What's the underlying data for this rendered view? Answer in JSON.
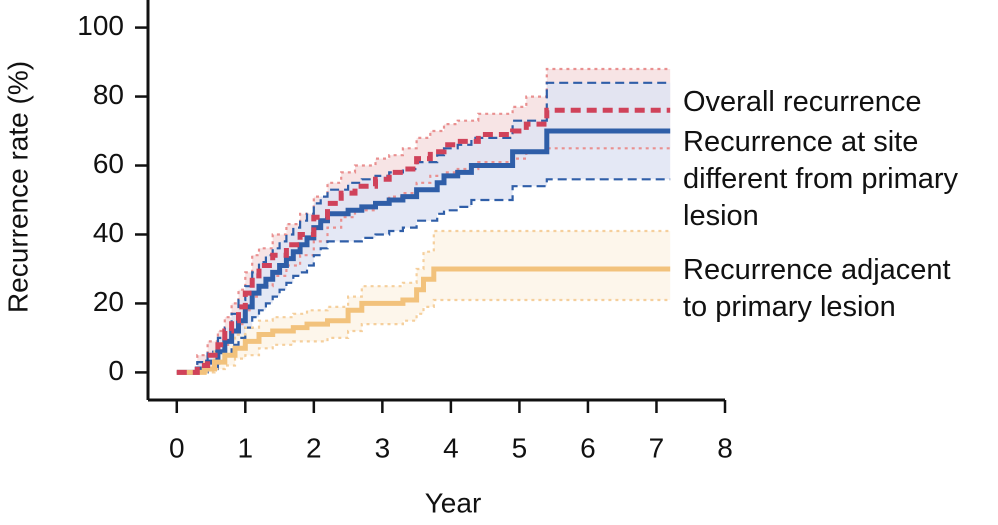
{
  "chart_data": {
    "type": "step",
    "x_label": "Year",
    "y_label": "Recurrence rate (%)",
    "xlim": [
      -0.42,
      8
    ],
    "ylim": [
      -8,
      108
    ],
    "xticks": [
      0,
      1,
      2,
      3,
      4,
      5,
      6,
      7,
      8
    ],
    "yticks": [
      0,
      20,
      40,
      60,
      80,
      100
    ],
    "series": [
      {
        "name": "Overall recurrence",
        "color": "#d0425a",
        "band_color": "#f6dfe0",
        "ci_color": "#e99090",
        "line_style": "dashed",
        "ci_style": "dotted",
        "x": [
          0,
          0.3,
          0.45,
          0.6,
          0.7,
          0.8,
          0.9,
          1.0,
          1.1,
          1.2,
          1.4,
          1.6,
          1.8,
          2.0,
          2.2,
          2.4,
          2.6,
          2.9,
          3.1,
          3.3,
          3.5,
          3.7,
          3.9,
          4.1,
          4.4,
          4.9,
          5.1,
          5.4,
          7.2
        ],
        "values": [
          0,
          2,
          5,
          8,
          12,
          15,
          19,
          23,
          28,
          31,
          34,
          37,
          40,
          45,
          49,
          52,
          54,
          56,
          58,
          59,
          62,
          64,
          66,
          67,
          69,
          70,
          72,
          76,
          76
        ],
        "lower": [
          0,
          0,
          2,
          5,
          8,
          11,
          14,
          18,
          22,
          25,
          28,
          31,
          34,
          38,
          42,
          45,
          47,
          49,
          51,
          52,
          55,
          57,
          58,
          59,
          61,
          62,
          64,
          65,
          65
        ],
        "upper": [
          0,
          5,
          9,
          12,
          16,
          20,
          24,
          29,
          34,
          36,
          40,
          43,
          46,
          51,
          55,
          58,
          60,
          62,
          63,
          65,
          68,
          70,
          72,
          73,
          75,
          77,
          80,
          88,
          88
        ]
      },
      {
        "name": "Recurrence at site\ndifferent from primary\nlesion",
        "color": "#2f5ea8",
        "band_color": "#dfe4f3",
        "ci_color": "#2f5ea8",
        "line_style": "solid",
        "ci_style": "dashed",
        "x": [
          0,
          0.3,
          0.45,
          0.6,
          0.7,
          0.8,
          0.9,
          1.0,
          1.1,
          1.2,
          1.3,
          1.4,
          1.5,
          1.6,
          1.7,
          1.8,
          1.9,
          2.0,
          2.1,
          2.2,
          2.5,
          2.7,
          2.9,
          3.1,
          3.3,
          3.5,
          3.8,
          3.9,
          4.1,
          4.3,
          4.9,
          5.4,
          7.2
        ],
        "values": [
          0,
          1,
          3,
          6,
          9,
          12,
          15,
          19,
          23,
          25,
          27,
          29,
          31,
          33,
          35,
          37,
          39,
          42,
          44,
          46,
          47,
          48,
          49,
          50,
          51,
          53,
          55,
          57,
          58,
          60,
          64,
          70,
          70
        ],
        "lower": [
          0,
          0,
          1,
          3,
          5,
          8,
          10,
          13,
          16,
          18,
          20,
          22,
          24,
          26,
          28,
          29,
          31,
          34,
          36,
          38,
          38,
          39,
          40,
          41,
          42,
          44,
          46,
          47,
          48,
          50,
          54,
          56,
          56
        ],
        "upper": [
          0,
          3,
          6,
          10,
          13,
          17,
          21,
          25,
          29,
          32,
          34,
          36,
          38,
          40,
          42,
          44,
          46,
          49,
          51,
          53,
          55,
          56,
          57,
          58,
          59,
          61,
          63,
          65,
          66,
          68,
          73,
          84,
          84
        ]
      },
      {
        "name": "Recurrence adjacent\nto primary lesion",
        "color": "#f2c27c",
        "band_color": "#fdf4e7",
        "ci_color": "#f5cf9c",
        "line_style": "solid",
        "ci_style": "dotted",
        "x": [
          0,
          0.4,
          0.55,
          0.7,
          0.85,
          1.0,
          1.2,
          1.4,
          1.7,
          1.9,
          2.2,
          2.5,
          2.7,
          3.3,
          3.5,
          3.6,
          3.75,
          7.2
        ],
        "values": [
          0,
          1,
          3,
          5,
          7,
          9,
          11,
          12,
          13,
          14,
          15,
          18,
          20,
          21,
          24,
          27,
          30,
          30
        ],
        "lower": [
          0,
          0,
          1,
          2,
          4,
          5,
          7,
          8,
          9,
          9,
          10,
          12,
          14,
          15,
          17,
          19,
          21,
          21
        ],
        "upper": [
          0,
          3,
          6,
          9,
          11,
          13,
          15,
          16,
          17,
          18,
          19,
          22,
          25,
          26,
          30,
          35,
          41,
          41
        ]
      }
    ]
  }
}
